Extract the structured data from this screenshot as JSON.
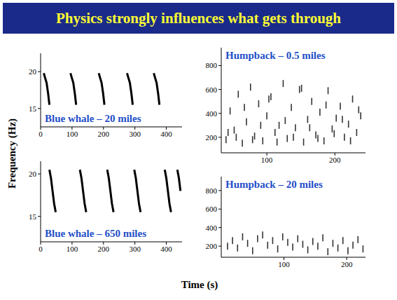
{
  "title": "Physics strongly influences what gets through",
  "y_label": "Frequency (Hz)",
  "x_label": "Time (s)",
  "chart_data": [
    {
      "type": "line",
      "title": "Blue whale – 20 miles",
      "xlim": [
        0,
        450
      ],
      "xticks": [
        0,
        100,
        200,
        300,
        400
      ],
      "ylim": [
        12.5,
        22.5
      ],
      "yticks": [
        15,
        20
      ],
      "color": "#000000",
      "series": [
        {
          "x": [
            10,
            14,
            19,
            24,
            28
          ],
          "values": [
            19.8,
            19.2,
            18.5,
            17,
            15.5
          ]
        },
        {
          "x": [
            95,
            99,
            104,
            109,
            113
          ],
          "values": [
            19.8,
            19.2,
            18.5,
            17,
            15.5
          ]
        },
        {
          "x": [
            185,
            189,
            194,
            199,
            203
          ],
          "values": [
            19.8,
            19.2,
            18.5,
            17,
            15.5
          ]
        },
        {
          "x": [
            275,
            279,
            284,
            289,
            293
          ],
          "values": [
            19.8,
            19.2,
            18.5,
            17,
            15.5
          ]
        },
        {
          "x": [
            360,
            364,
            369,
            374,
            378
          ],
          "values": [
            19.8,
            19.2,
            18.5,
            17,
            15.5
          ]
        }
      ]
    },
    {
      "type": "line",
      "title": "Blue whale – 650 miles",
      "xlim": [
        0,
        450
      ],
      "xticks": [
        0,
        100,
        200,
        300,
        400
      ],
      "ylim": [
        12,
        21.5
      ],
      "yticks": [
        15,
        20
      ],
      "color": "#000000",
      "series": [
        {
          "x": [
            28,
            33,
            38,
            43,
            48
          ],
          "values": [
            20.5,
            19.5,
            18,
            16.5,
            15.5
          ]
        },
        {
          "x": [
            125,
            130,
            135,
            140,
            145
          ],
          "values": [
            20.5,
            19.5,
            18,
            16.5,
            15.5
          ]
        },
        {
          "x": [
            212,
            217,
            222,
            227,
            232
          ],
          "values": [
            20.5,
            19.5,
            18,
            16.5,
            15.5
          ]
        },
        {
          "x": [
            298,
            303,
            308,
            313,
            318
          ],
          "values": [
            20.5,
            19.5,
            18,
            16.5,
            15.5
          ]
        },
        {
          "x": [
            395,
            400,
            405,
            410,
            415
          ],
          "values": [
            20.5,
            19.5,
            18,
            16.5,
            15.5
          ]
        },
        {
          "x": [
            435,
            440,
            445
          ],
          "values": [
            20.5,
            19.5,
            18
          ]
        }
      ]
    },
    {
      "type": "scatter",
      "marker": "vline",
      "title": "Humpback – 0.5 miles",
      "xlim": [
        33,
        245
      ],
      "xticks": [
        100,
        200
      ],
      "ylim": [
        70,
        950
      ],
      "yticks": [
        200,
        400,
        600,
        800
      ],
      "color": "#333333",
      "x": [
        40,
        46,
        52,
        58,
        64,
        70,
        76,
        82,
        88,
        94,
        100,
        106,
        112,
        118,
        124,
        130,
        136,
        142,
        148,
        154,
        160,
        166,
        172,
        178,
        184,
        190,
        196,
        202,
        208,
        214,
        220,
        226,
        232,
        238,
        43,
        55,
        67,
        79,
        91,
        103,
        115,
        127,
        139,
        151,
        163,
        175,
        187,
        199,
        211,
        223,
        235
      ],
      "values": [
        180,
        420,
        260,
        560,
        150,
        330,
        620,
        210,
        480,
        170,
        380,
        540,
        240,
        300,
        650,
        190,
        450,
        280,
        600,
        160,
        350,
        500,
        220,
        410,
        170,
        590,
        270,
        360,
        460,
        200,
        310,
        520,
        240,
        380,
        240,
        200,
        450,
        180,
        300,
        520,
        160,
        340,
        200,
        610,
        280,
        190,
        470,
        230,
        350,
        170,
        430
      ]
    },
    {
      "type": "scatter",
      "marker": "vline",
      "title": "Humpback – 20 miles",
      "xlim": [
        0,
        230
      ],
      "xticks": [
        100,
        200
      ],
      "ylim": [
        80,
        950
      ],
      "yticks": [
        200,
        400,
        600,
        800
      ],
      "color": "#333333",
      "x": [
        10,
        18,
        26,
        34,
        42,
        50,
        58,
        66,
        74,
        82,
        90,
        98,
        106,
        114,
        122,
        130,
        138,
        146,
        154,
        162,
        170,
        178,
        186,
        194,
        202,
        210,
        218,
        226
      ],
      "values": [
        200,
        260,
        180,
        300,
        230,
        150,
        280,
        320,
        210,
        260,
        170,
        300,
        240,
        190,
        280,
        220,
        160,
        250,
        200,
        290,
        140,
        230,
        180,
        260,
        150,
        210,
        270,
        170
      ]
    }
  ]
}
